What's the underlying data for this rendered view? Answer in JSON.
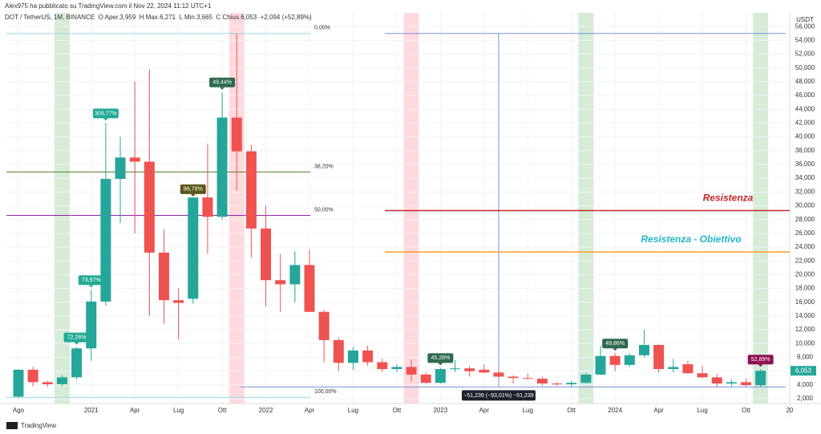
{
  "header": "Alex975 ha pubblicato su TradingView.com il Nov 22, 2024 11:12 UTC+1",
  "legend": "DOT / TetherUS, 1M, BINANCE  O Aper.3,959  H Max.6,271  L Min.3,665  C Chius.6,053  +2,094 (+52,89%)",
  "brand": "TradingView",
  "chart_data": {
    "type": "candlestick",
    "axis_title": "USDT",
    "up_color": "#26a69a",
    "down_color": "#ef5350",
    "grid": true,
    "categories": [
      "Ago",
      null,
      null,
      null,
      null,
      "2021",
      null,
      null,
      "Apr",
      null,
      null,
      "Lug",
      null,
      null,
      "Ott",
      null,
      null,
      "2022",
      null,
      null,
      "Apr",
      null,
      null,
      "Lug",
      null,
      null,
      "Ott",
      null,
      null,
      "2023",
      null,
      null,
      "Apr",
      null,
      null,
      "Lug",
      null,
      null,
      "Ott",
      null,
      null,
      "2024",
      null,
      null,
      "Apr",
      null,
      null,
      "Lug",
      null,
      null,
      "Ott",
      null,
      null,
      "20"
    ],
    "open": [
      2300,
      6200,
      4400,
      4100,
      5100,
      9300,
      16100,
      33900,
      37000,
      36400,
      23200,
      16300,
      16500,
      31200,
      28400,
      42800,
      37900,
      26700,
      19200,
      18600,
      21400,
      14600,
      10500,
      7200,
      9000,
      7300,
      6300,
      6600,
      5500,
      4300,
      6300,
      6400,
      6200,
      5800,
      5200,
      5000,
      4900,
      4200,
      4100,
      4300,
      5500,
      8200,
      6900,
      8300,
      9800,
      6300,
      7000,
      5700,
      5100,
      4200,
      4400,
      3959,
      null,
      null
    ],
    "high": [
      6300,
      6600,
      4600,
      5400,
      9500,
      17800,
      42000,
      40000,
      48000,
      49800,
      26600,
      18000,
      31000,
      39000,
      46500,
      55000,
      38800,
      30000,
      23000,
      23400,
      23600,
      14900,
      10800,
      9500,
      9700,
      7800,
      7000,
      7700,
      5800,
      6500,
      7600,
      6700,
      7000,
      6200,
      5400,
      5600,
      5200,
      4400,
      4600,
      5800,
      9700,
      8600,
      8600,
      12000,
      9900,
      7800,
      7500,
      6800,
      5600,
      4800,
      4900,
      6271,
      null,
      null
    ],
    "low": [
      2100,
      3800,
      3700,
      3800,
      4800,
      7500,
      15500,
      27500,
      26000,
      14000,
      12900,
      10600,
      15800,
      23000,
      28000,
      32200,
      22500,
      15400,
      14600,
      16000,
      14700,
      7300,
      6000,
      6200,
      6800,
      5900,
      5900,
      4500,
      4200,
      4200,
      5900,
      5200,
      5700,
      5100,
      4200,
      4800,
      3900,
      3900,
      3700,
      4200,
      5400,
      6000,
      6600,
      8000,
      5800,
      5800,
      5600,
      5000,
      3700,
      3800,
      3800,
      3665,
      null,
      null
    ],
    "close": [
      6200,
      4400,
      4100,
      5100,
      9300,
      16100,
      33900,
      37000,
      36400,
      23200,
      16300,
      15900,
      31200,
      28400,
      42800,
      37900,
      26700,
      19200,
      18600,
      21400,
      14600,
      10500,
      7200,
      9000,
      7300,
      6300,
      6600,
      5500,
      4300,
      6300,
      6400,
      6000,
      5800,
      5200,
      5000,
      4900,
      4200,
      4100,
      4300,
      5500,
      8200,
      6900,
      8300,
      9800,
      6300,
      6600,
      5700,
      5100,
      4200,
      4400,
      3959,
      6053,
      null,
      null
    ],
    "ylim": [
      1300,
      58000
    ],
    "yticks": [
      {
        "value": 2000,
        "label": "2,000"
      },
      {
        "value": 4000,
        "label": "4,000"
      },
      {
        "value": 6000,
        "label": "6,000"
      },
      {
        "value": 8000,
        "label": "8,000"
      },
      {
        "value": 10000,
        "label": "10,000"
      },
      {
        "value": 12000,
        "label": "12,000"
      },
      {
        "value": 14000,
        "label": "14,000"
      },
      {
        "value": 16000,
        "label": "16,000"
      },
      {
        "value": 18000,
        "label": "18,000"
      },
      {
        "value": 20000,
        "label": "20,000"
      },
      {
        "value": 22000,
        "label": "22,000"
      },
      {
        "value": 24000,
        "label": "24,000"
      },
      {
        "value": 26000,
        "label": "26,000"
      },
      {
        "value": 28000,
        "label": "28,000"
      },
      {
        "value": 30000,
        "label": "30,000"
      },
      {
        "value": 32000,
        "label": "32,000"
      },
      {
        "value": 34000,
        "label": "34,000"
      },
      {
        "value": 36000,
        "label": "36,000"
      },
      {
        "value": 38000,
        "label": "38,000"
      },
      {
        "value": 40000,
        "label": "40,000"
      },
      {
        "value": 42000,
        "label": "42,000"
      },
      {
        "value": 44000,
        "label": "44,000"
      },
      {
        "value": 46000,
        "label": "46,000"
      },
      {
        "value": 48000,
        "label": "48,000"
      },
      {
        "value": 50000,
        "label": "50,000"
      },
      {
        "value": 52000,
        "label": "52,000"
      },
      {
        "value": 54000,
        "label": "54,000"
      },
      {
        "value": 56000,
        "label": "56,000"
      }
    ],
    "last_price": {
      "value": 6053,
      "label": "6,053"
    },
    "annotations": [
      {
        "text": "309,77%",
        "color": "#22ab94"
      },
      {
        "text": "73,97%",
        "color": "#22ab94"
      },
      {
        "text": "72,26%",
        "color": "#22ab94"
      },
      {
        "text": "86,79%",
        "color": "#5b5a1a"
      },
      {
        "text": "49,44%",
        "color": "#2d6a4f"
      },
      {
        "text": "45,28%",
        "color": "#2d6a4f"
      },
      {
        "text": "49,86%",
        "color": "#2d6a4f"
      },
      {
        "text": "52,89%",
        "color": "#8e1050"
      }
    ],
    "fib_levels": [
      {
        "label": "0,00%",
        "value": 55000,
        "color": "#9bd6e0"
      },
      {
        "label": "38,20%",
        "value": 34900,
        "color": "#4f7d2c"
      },
      {
        "label": "50,00%",
        "value": 28600,
        "color": "#8e24aa"
      },
      {
        "label": "100,00%",
        "value": 2200,
        "color": "#9bd6e0"
      }
    ],
    "lines": [
      {
        "text": "Resistenza",
        "value": 29300,
        "color": "#c62828"
      },
      {
        "text": "Resistenza - Obiettivo",
        "value": 23300,
        "color": "#26b5c9",
        "line_color": "#f59b2b"
      }
    ],
    "measure": {
      "label": "−51,239 (−93,01%) −51,239",
      "from": 55000,
      "to": 3700
    }
  }
}
